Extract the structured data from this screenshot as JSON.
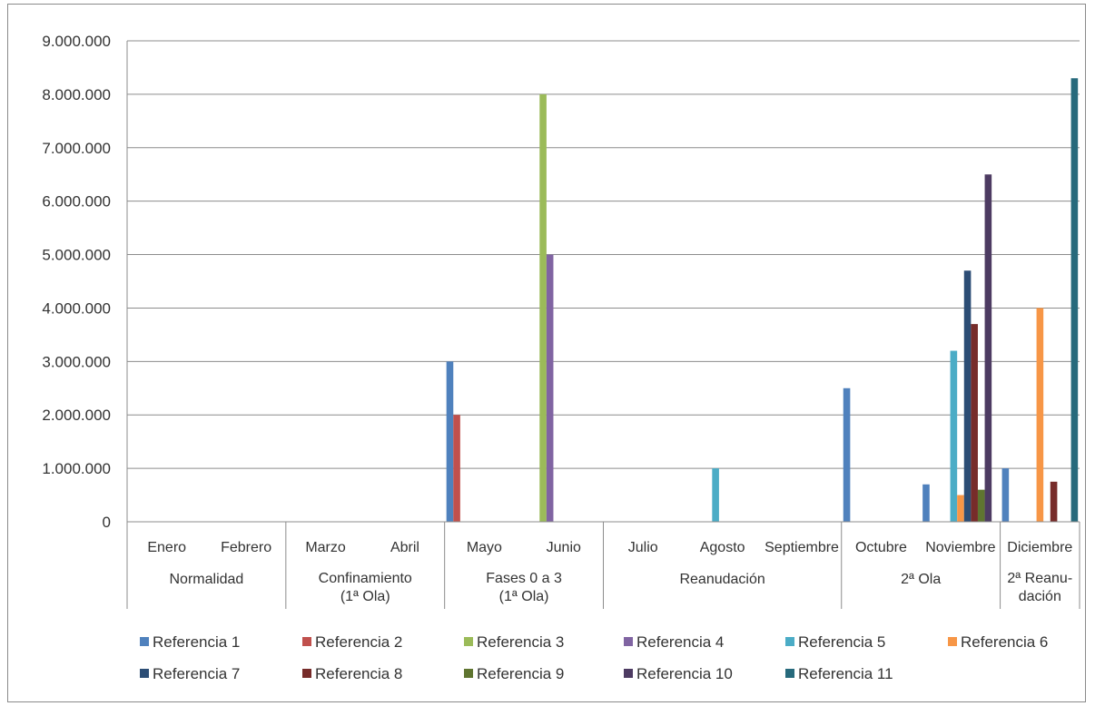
{
  "chart_data": {
    "type": "bar",
    "title": "",
    "xlabel": "",
    "ylabel": "",
    "ylim": [
      0,
      9000000
    ],
    "y_ticks": [
      "0",
      "1.000.000",
      "2.000.000",
      "3.000.000",
      "4.000.000",
      "5.000.000",
      "6.000.000",
      "7.000.000",
      "8.000.000",
      "9.000.000"
    ],
    "grid": "horizontal",
    "legend_position": "bottom",
    "categories": [
      "Enero",
      "Febrero",
      "Marzo",
      "Abril",
      "Mayo",
      "Junio",
      "Julio",
      "Agosto",
      "Septiembre",
      "Octubre",
      "Noviembre",
      "Diciembre"
    ],
    "groups": [
      {
        "lines": [
          "Normalidad"
        ]
      },
      {
        "lines": [
          "Confinamiento",
          "(1ª Ola)"
        ]
      },
      {
        "lines": [
          "Fases 0 a 3",
          "(1ª Ola)"
        ]
      },
      {
        "lines": [
          "Reanudación"
        ]
      },
      {
        "lines": [
          "2ª Ola"
        ]
      },
      {
        "lines": [
          "2ª Reanu-",
          "dación"
        ]
      }
    ],
    "series": [
      {
        "name": "Referencia 1",
        "color": "#4f81bd",
        "values": [
          null,
          null,
          null,
          null,
          3000000,
          null,
          null,
          null,
          null,
          2500000,
          700000,
          1000000
        ]
      },
      {
        "name": "Referencia 2",
        "color": "#c0504d",
        "values": [
          null,
          null,
          null,
          null,
          2000000,
          null,
          null,
          null,
          null,
          null,
          null,
          null
        ]
      },
      {
        "name": "Referencia 3",
        "color": "#9bbb59",
        "values": [
          null,
          null,
          null,
          null,
          null,
          8000000,
          null,
          null,
          null,
          null,
          null,
          null
        ]
      },
      {
        "name": "Referencia 4",
        "color": "#8064a2",
        "values": [
          null,
          null,
          null,
          null,
          null,
          5000000,
          null,
          null,
          null,
          null,
          null,
          null
        ]
      },
      {
        "name": "Referencia 5",
        "color": "#4bacc6",
        "values": [
          null,
          null,
          null,
          null,
          null,
          null,
          null,
          1000000,
          null,
          null,
          3200000,
          null
        ]
      },
      {
        "name": "Referencia 6",
        "color": "#f79646",
        "values": [
          null,
          null,
          null,
          null,
          null,
          null,
          null,
          null,
          null,
          null,
          500000,
          4000000
        ]
      },
      {
        "name": "Referencia 7",
        "color": "#2c4d75",
        "values": [
          null,
          null,
          null,
          null,
          null,
          null,
          null,
          null,
          null,
          null,
          4700000,
          null
        ]
      },
      {
        "name": "Referencia 8",
        "color": "#772c2a",
        "values": [
          null,
          null,
          null,
          null,
          null,
          null,
          null,
          null,
          null,
          null,
          3700000,
          750000
        ]
      },
      {
        "name": "Referencia 9",
        "color": "#5f7530",
        "values": [
          null,
          null,
          null,
          null,
          null,
          null,
          null,
          null,
          null,
          null,
          600000,
          null
        ]
      },
      {
        "name": "Referencia 10",
        "color": "#4d3b62",
        "values": [
          null,
          null,
          null,
          null,
          null,
          null,
          null,
          null,
          null,
          null,
          6500000,
          null
        ]
      },
      {
        "name": "Referencia 11",
        "color": "#276a7c",
        "values": [
          null,
          null,
          null,
          null,
          null,
          null,
          null,
          null,
          null,
          null,
          null,
          8300000
        ]
      }
    ]
  }
}
